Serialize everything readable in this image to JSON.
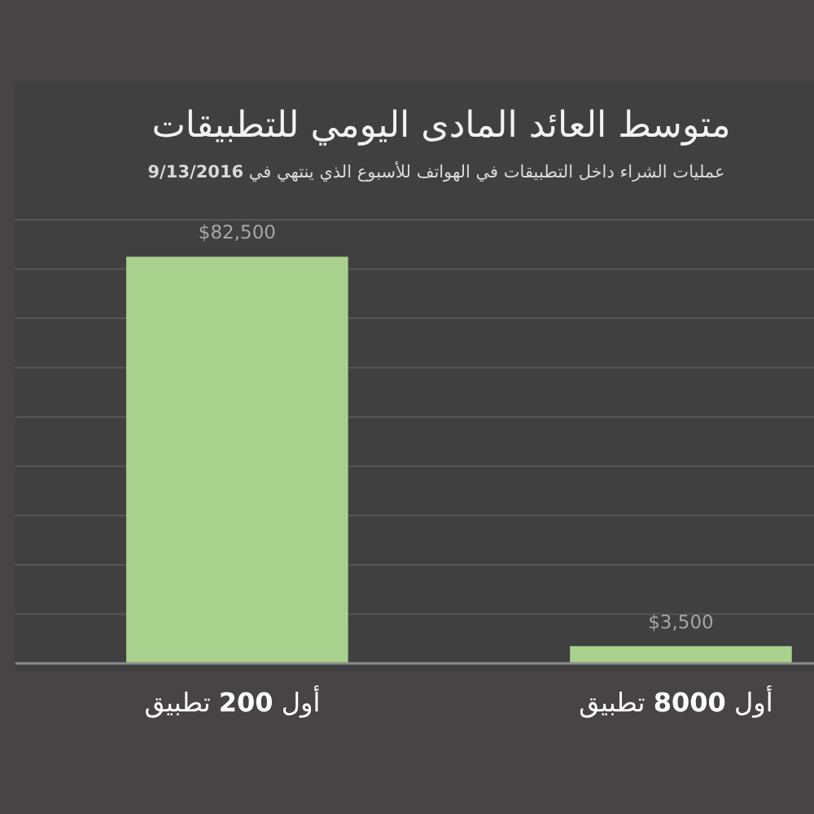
{
  "chart_data": {
    "type": "bar",
    "title": "متوسط العائد المادى اليومي للتطبيقات",
    "subtitle": "عمليات الشراء داخل التطبيقات في الهواتف للأسبوع الذي ينتهي في **9/13/2016**",
    "categories": [
      "أول **200** تطبيق",
      "أول **8000** تطبيق"
    ],
    "values": [
      82500,
      3500
    ],
    "value_labels": [
      "$82,500",
      "$3,500"
    ],
    "color": "#a9d18e",
    "grid": "y",
    "tick_labels": "x"
  }
}
